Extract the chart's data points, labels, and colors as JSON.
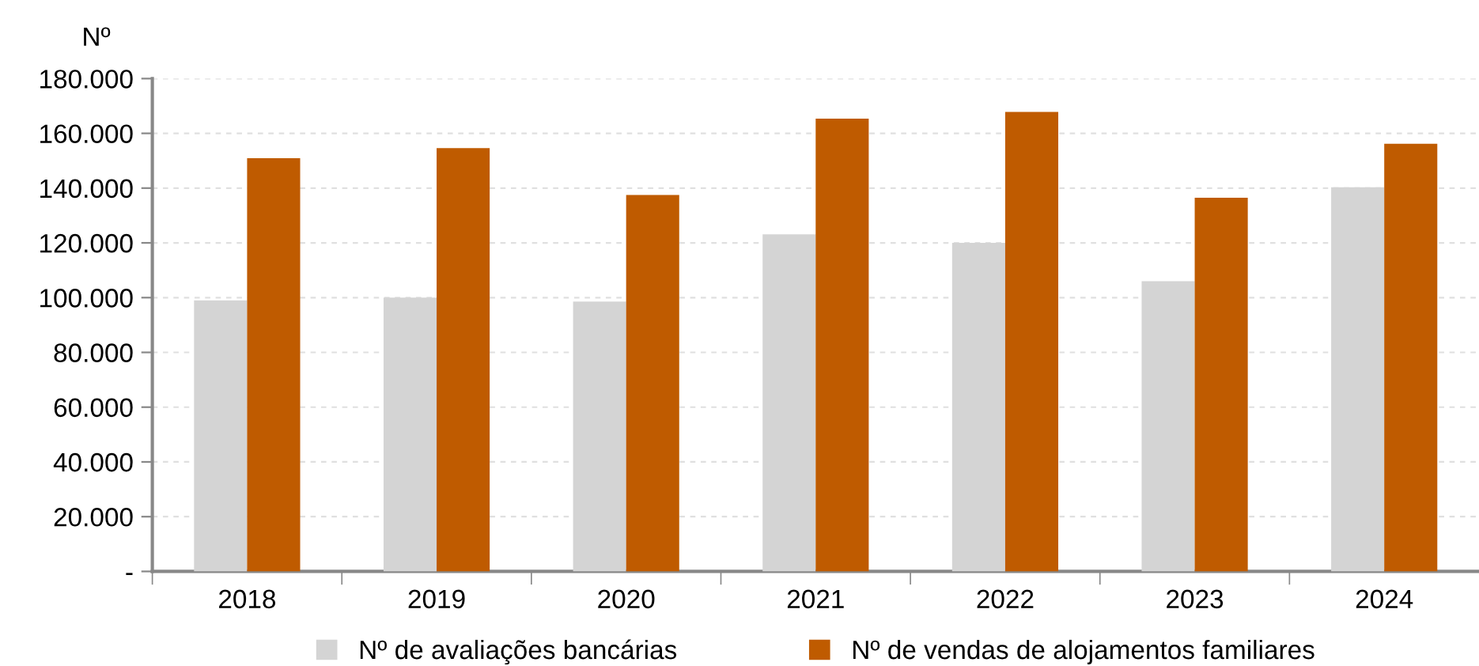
{
  "chart_data": {
    "type": "bar",
    "ylabel": "Nº",
    "categories": [
      "2018",
      "2019",
      "2020",
      "2021",
      "2022",
      "2023",
      "2024"
    ],
    "series": [
      {
        "name": "Nº de avaliações bancárias",
        "color": "#d4d4d4",
        "values": [
          99000,
          100000,
          98600,
          123100,
          120000,
          106000,
          140300
        ]
      },
      {
        "name": "Nº de vendas de alojamentos familiares",
        "color": "#bf5b00",
        "values": [
          150900,
          154600,
          137500,
          165400,
          167800,
          136500,
          156200
        ]
      }
    ],
    "ylim": [
      0,
      180000
    ],
    "yticks": [
      {
        "value": 0,
        "label": "-"
      },
      {
        "value": 20000,
        "label": "20.000"
      },
      {
        "value": 40000,
        "label": "40.000"
      },
      {
        "value": 60000,
        "label": "60.000"
      },
      {
        "value": 80000,
        "label": "80.000"
      },
      {
        "value": 100000,
        "label": "100.000"
      },
      {
        "value": 120000,
        "label": "120.000"
      },
      {
        "value": 140000,
        "label": "140.000"
      },
      {
        "value": 160000,
        "label": "160.000"
      },
      {
        "value": 180000,
        "label": "180.000"
      }
    ],
    "grid": "y",
    "legend": "bottom"
  }
}
